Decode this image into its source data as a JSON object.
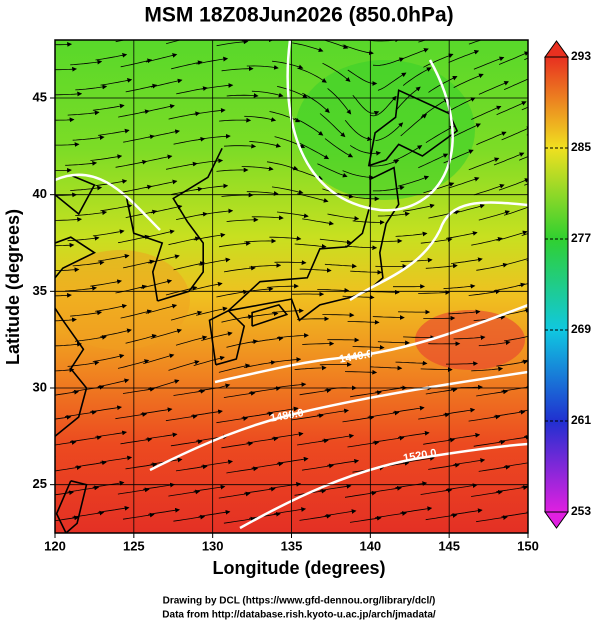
{
  "chart_data": {
    "type": "map",
    "title": "MSM 18Z08Jun2026 (850.0hPa)",
    "xlabel": "Longitude (degrees)",
    "ylabel": "Latitude  (degrees)",
    "xlim": [
      120,
      150
    ],
    "ylim": [
      22.5,
      48
    ],
    "xticks": [
      120,
      125,
      130,
      135,
      140,
      145,
      150
    ],
    "yticks": [
      25,
      30,
      35,
      40,
      45
    ],
    "grid": true,
    "colorbar": {
      "lim": [
        253,
        293
      ],
      "ticks": [
        253,
        261,
        269,
        277,
        285,
        293
      ],
      "colors": [
        "#e020e0",
        "#2030d0",
        "#10c8e0",
        "#30d030",
        "#f0e020",
        "#e83020"
      ]
    },
    "contour_labels": [
      "1440.0",
      "1480.0",
      "1520.0"
    ],
    "footer": [
      "Drawing by DCL (https://www.gfd-dennou.org/library/dcl/)",
      "Data from http://database.rish.kyoto-u.ac.jp/arch/jmadata/"
    ]
  }
}
